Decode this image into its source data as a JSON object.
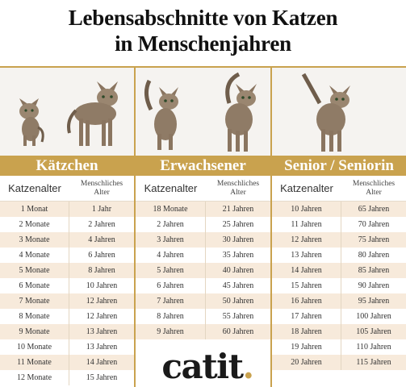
{
  "title": {
    "line1": "Lebensabschnitte von Katzen",
    "line2": "in Menschenjahren"
  },
  "colors": {
    "gold": "#c9a24e",
    "row_tint": "#f7eadb"
  },
  "sections": [
    {
      "name": "Kätzchen",
      "col1_header": "Katzenalter",
      "col2_header_line1": "Menschliches",
      "col2_header_line2": "Alter",
      "rows": [
        [
          "1 Monat",
          "1 Jahr"
        ],
        [
          "2 Monate",
          "2 Jahren"
        ],
        [
          "3 Monate",
          "4 Jahren"
        ],
        [
          "4 Monate",
          "6 Jahren"
        ],
        [
          "5 Monate",
          "8 Jahren"
        ],
        [
          "6 Monate",
          "10 Jahren"
        ],
        [
          "7 Monate",
          "12 Jahren"
        ],
        [
          "8 Monate",
          "12 Jahren"
        ],
        [
          "9 Monate",
          "13 Jahren"
        ],
        [
          "10 Monate",
          "13 Jahren"
        ],
        [
          "11 Monate",
          "14 Jahren"
        ],
        [
          "12 Monate",
          "15 Jahren"
        ]
      ]
    },
    {
      "name": "Erwachsener",
      "col1_header": "Katzenalter",
      "col2_header_line1": "Menschliches",
      "col2_header_line2": "Alter",
      "rows": [
        [
          "18 Monate",
          "21 Jahren"
        ],
        [
          "2 Jahren",
          "25 Jahren"
        ],
        [
          "3 Jahren",
          "30 Jahren"
        ],
        [
          "4 Jahren",
          "35 Jahren"
        ],
        [
          "5 Jahren",
          "40 Jahren"
        ],
        [
          "6 Jahren",
          "45 Jahren"
        ],
        [
          "7 Jahren",
          "50 Jahren"
        ],
        [
          "8 Jahren",
          "55 Jahren"
        ],
        [
          "9 Jahren",
          "60 Jahren"
        ]
      ]
    },
    {
      "name": "Senior / Seniorin",
      "col1_header": "Katzenalter",
      "col2_header_line1": "Menschliches",
      "col2_header_line2": "Alter",
      "rows": [
        [
          "10 Jahren",
          "65 Jahren"
        ],
        [
          "11 Jahren",
          "70 Jahren"
        ],
        [
          "12 Jahren",
          "75 Jahren"
        ],
        [
          "13 Jahren",
          "80 Jahren"
        ],
        [
          "14 Jahren",
          "85 Jahren"
        ],
        [
          "15 Jahren",
          "90 Jahren"
        ],
        [
          "16 Jahren",
          "95 Jahren"
        ],
        [
          "17 Jahren",
          "100 Jahren"
        ],
        [
          "18 Jahren",
          "105 Jahren"
        ],
        [
          "19 Jahren",
          "110 Jahren"
        ],
        [
          "20 Jahren",
          "115 Jahren"
        ]
      ]
    }
  ],
  "logo": {
    "text_main": "cati",
    "text_end": "t",
    "dot": "."
  }
}
